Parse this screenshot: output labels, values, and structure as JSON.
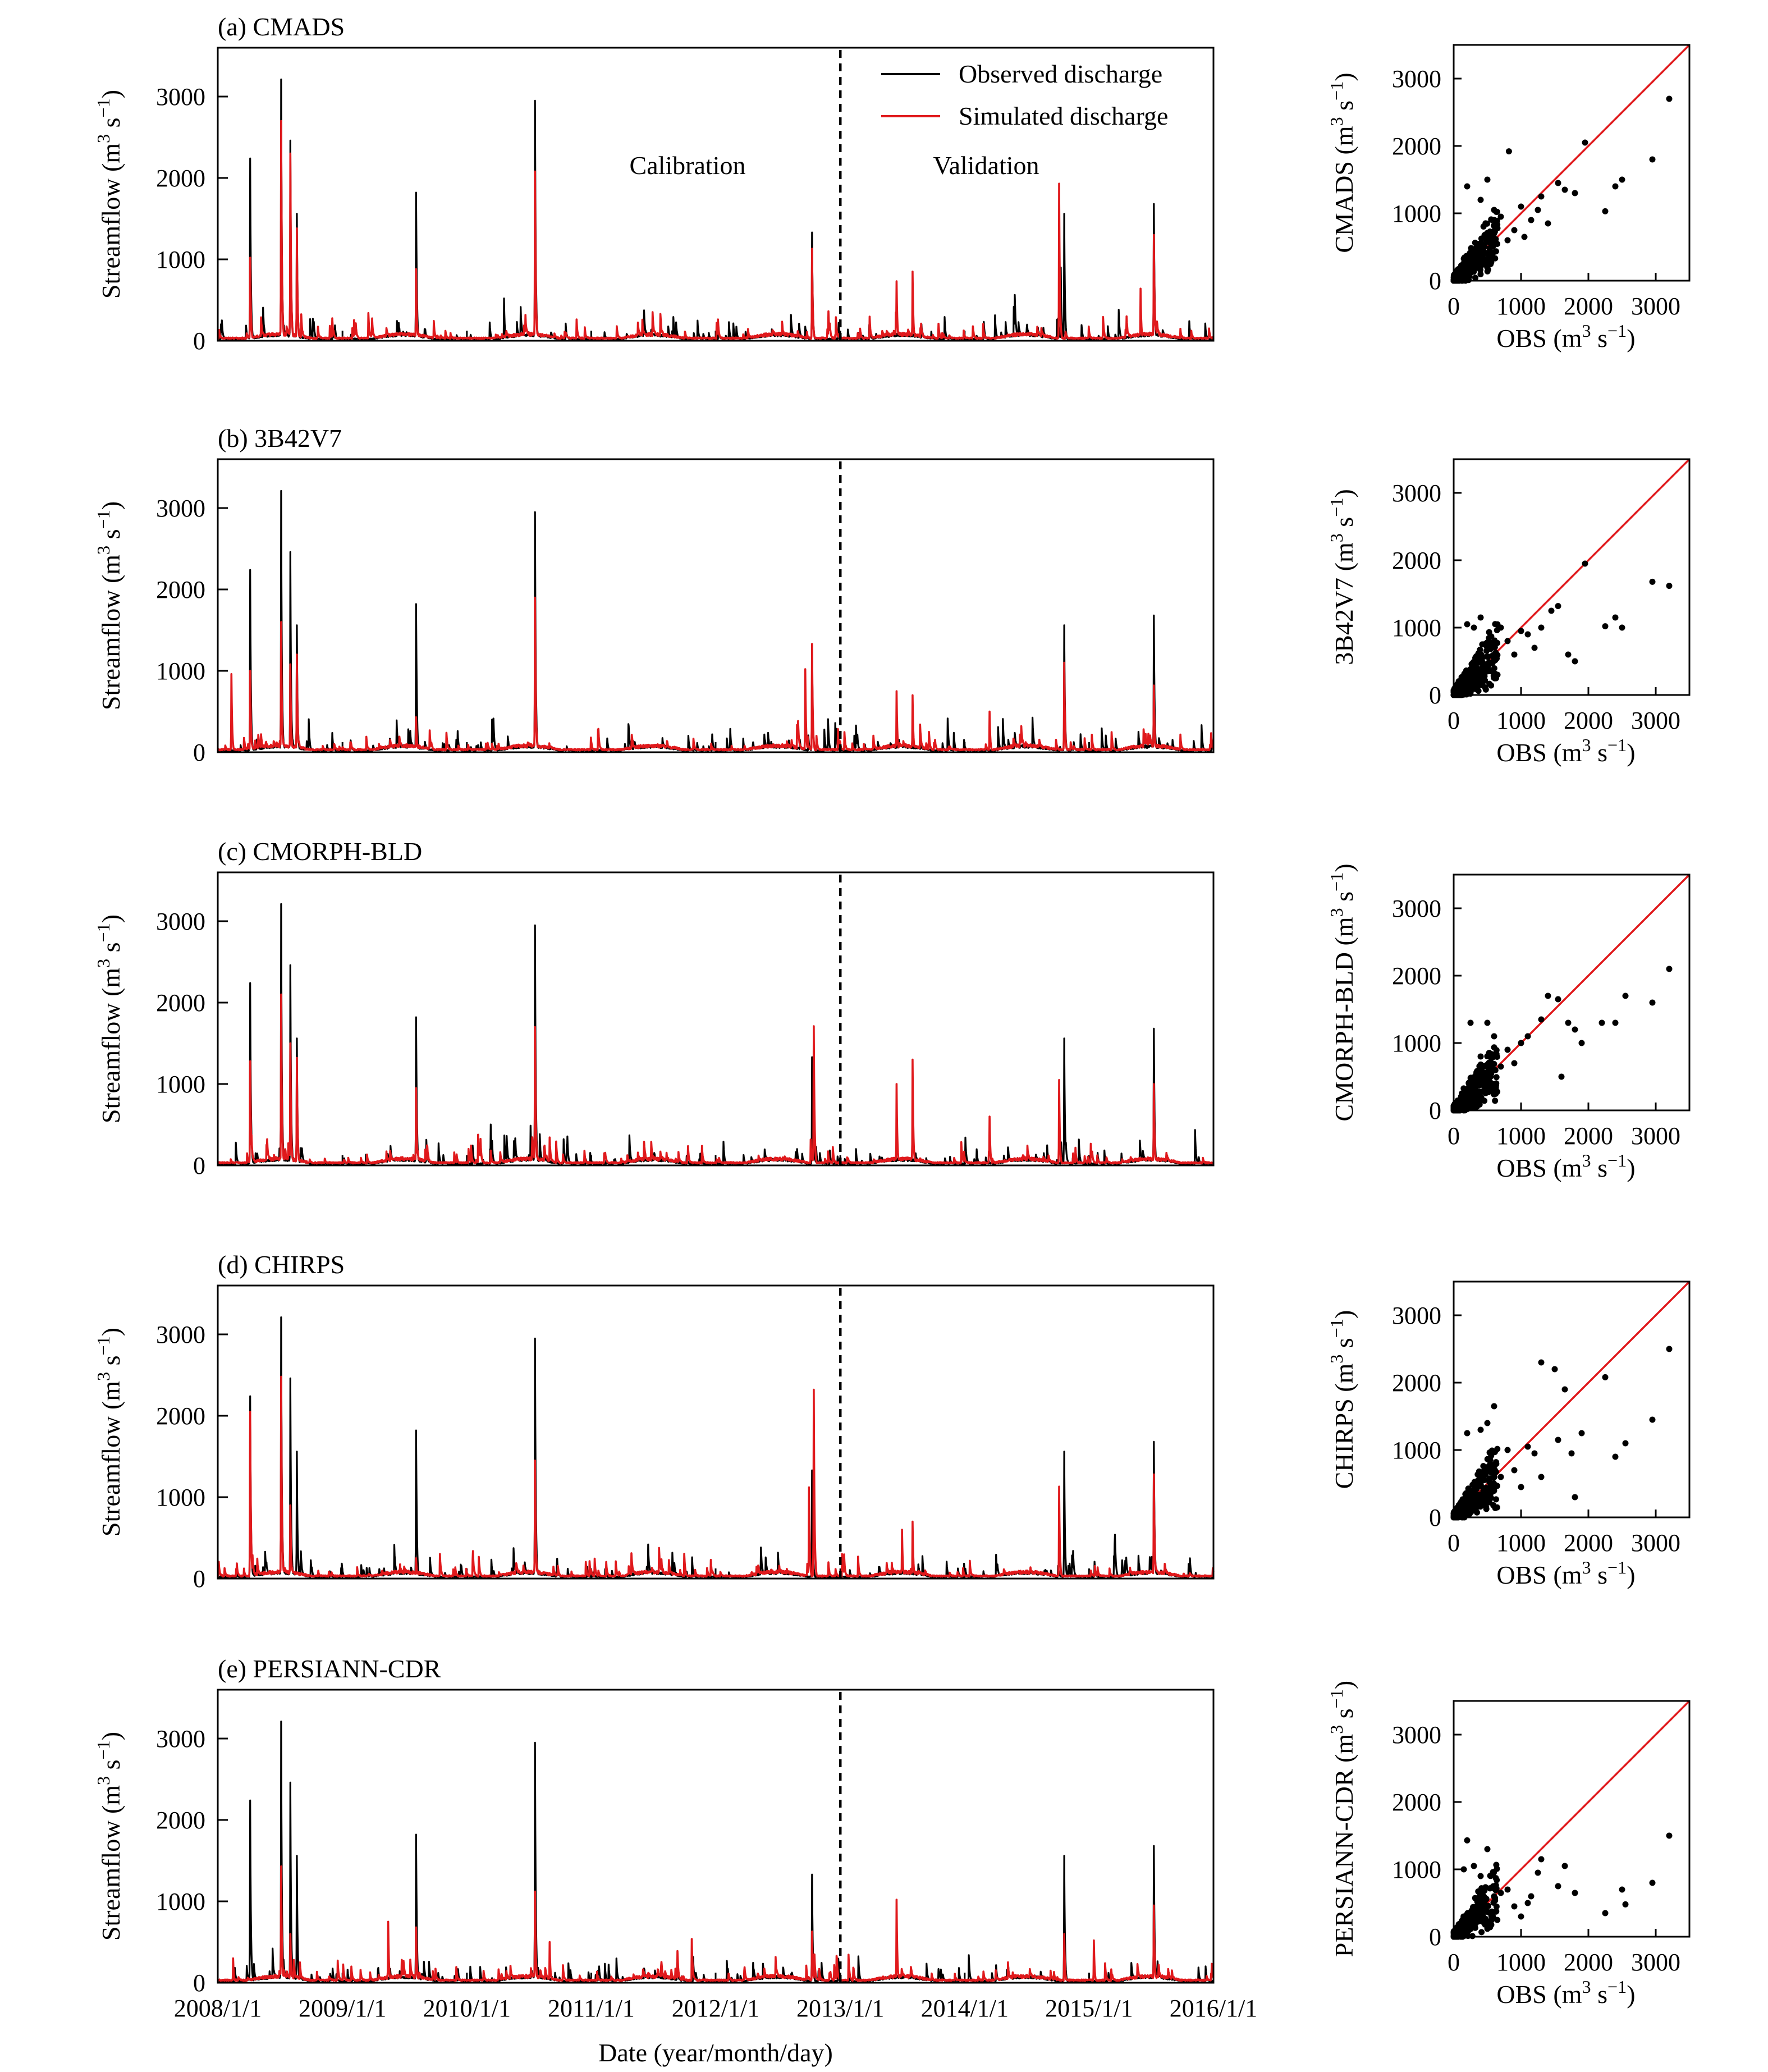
{
  "figure": {
    "xlabel": "Date (year/month/day)",
    "x_tick_labels": [
      "2008/1/1",
      "2009/1/1",
      "2010/1/1",
      "2011/1/1",
      "2012/1/1",
      "2013/1/1",
      "2014/1/1",
      "2015/1/1",
      "2016/1/1"
    ],
    "legend": {
      "observed": "Observed discharge",
      "simulated": "Simulated discharge",
      "position": "top-right of panel (a)"
    },
    "period_labels": {
      "calibration": "Calibration",
      "validation": "Validation"
    },
    "colors": {
      "observed": "#000000",
      "simulated": "#e0191c",
      "one_to_one": "#e0191c",
      "points": "#000000"
    }
  },
  "chart_data": [
    {
      "type": "line",
      "panel": "a",
      "title": "(a) CMADS",
      "ylabel": "Streamflow (m³ s⁻¹)",
      "ylim": [
        0,
        3600
      ],
      "yticks": [
        0,
        1000,
        2000,
        3000
      ],
      "xlim": [
        "2008-01-01",
        "2016-01-01"
      ],
      "calibration_validation_split": "2013-01-01",
      "series": [
        {
          "name": "Observed discharge",
          "peaks": [
            [
              "2008-04-05",
              2240
            ],
            [
              "2008-07-05",
              3210
            ],
            [
              "2008-08-01",
              2460
            ],
            [
              "2008-08-20",
              1560
            ],
            [
              "2009-08-05",
              1820
            ],
            [
              "2010-07-20",
              2950
            ],
            [
              "2010-04-20",
              520
            ],
            [
              "2012-10-10",
              1330
            ],
            [
              "2014-10-20",
              1560
            ],
            [
              "2014-10-10",
              900
            ],
            [
              "2015-07-10",
              1680
            ]
          ]
        },
        {
          "name": "Simulated discharge",
          "peaks": [
            [
              "2008-04-05",
              1020
            ],
            [
              "2008-07-05",
              2700
            ],
            [
              "2008-08-01",
              2300
            ],
            [
              "2008-08-20",
              1380
            ],
            [
              "2009-08-05",
              880
            ],
            [
              "2010-07-20",
              2080
            ],
            [
              "2012-10-10",
              1130
            ],
            [
              "2013-06-15",
              730
            ],
            [
              "2013-08-01",
              850
            ],
            [
              "2014-10-05",
              1930
            ],
            [
              "2015-07-10",
              1300
            ],
            [
              "2015-06-01",
              640
            ]
          ]
        }
      ]
    },
    {
      "type": "line",
      "panel": "b",
      "title": "(b) 3B42V7",
      "ylabel": "Streamflow (m³ s⁻¹)",
      "ylim": [
        0,
        3600
      ],
      "yticks": [
        0,
        1000,
        2000,
        3000
      ],
      "xlim": [
        "2008-01-01",
        "2016-01-01"
      ],
      "calibration_validation_split": "2013-01-01",
      "series": [
        {
          "name": "Observed discharge",
          "peaks": [
            [
              "2008-04-05",
              2240
            ],
            [
              "2008-07-05",
              3210
            ],
            [
              "2008-08-01",
              2460
            ],
            [
              "2008-08-20",
              1560
            ],
            [
              "2009-08-05",
              1820
            ],
            [
              "2010-07-20",
              2950
            ],
            [
              "2012-10-10",
              1330
            ],
            [
              "2014-10-20",
              1560
            ],
            [
              "2015-07-10",
              1680
            ]
          ]
        },
        {
          "name": "Simulated discharge",
          "peaks": [
            [
              "2008-02-10",
              960
            ],
            [
              "2008-04-05",
              1000
            ],
            [
              "2008-07-05",
              1600
            ],
            [
              "2008-08-01",
              1080
            ],
            [
              "2008-08-20",
              1200
            ],
            [
              "2009-08-05",
              430
            ],
            [
              "2010-07-20",
              1900
            ],
            [
              "2012-09-20",
              1020
            ],
            [
              "2012-10-10",
              1330
            ],
            [
              "2013-06-15",
              750
            ],
            [
              "2013-08-01",
              700
            ],
            [
              "2014-03-15",
              500
            ],
            [
              "2014-10-20",
              1100
            ],
            [
              "2015-07-10",
              820
            ]
          ]
        }
      ]
    },
    {
      "type": "line",
      "panel": "c",
      "title": "(c) CMORPH-BLD",
      "ylabel": "Streamflow (m³ s⁻¹)",
      "ylim": [
        0,
        3600
      ],
      "yticks": [
        0,
        1000,
        2000,
        3000
      ],
      "xlim": [
        "2008-01-01",
        "2016-01-01"
      ],
      "calibration_validation_split": "2013-01-01",
      "series": [
        {
          "name": "Observed discharge",
          "peaks": [
            [
              "2008-04-05",
              2240
            ],
            [
              "2008-07-05",
              3210
            ],
            [
              "2008-08-01",
              2460
            ],
            [
              "2008-08-20",
              1560
            ],
            [
              "2009-08-05",
              1820
            ],
            [
              "2010-07-20",
              2950
            ],
            [
              "2012-10-10",
              1330
            ],
            [
              "2014-10-20",
              1560
            ],
            [
              "2015-07-10",
              1680
            ]
          ]
        },
        {
          "name": "Simulated discharge",
          "peaks": [
            [
              "2008-04-05",
              1280
            ],
            [
              "2008-07-05",
              2100
            ],
            [
              "2008-08-01",
              1500
            ],
            [
              "2008-08-20",
              1320
            ],
            [
              "2009-08-05",
              950
            ],
            [
              "2010-07-20",
              1700
            ],
            [
              "2012-10-15",
              1710
            ],
            [
              "2013-06-15",
              1000
            ],
            [
              "2013-08-01",
              1300
            ],
            [
              "2014-03-15",
              600
            ],
            [
              "2014-10-05",
              1050
            ],
            [
              "2015-07-10",
              1000
            ]
          ]
        }
      ]
    },
    {
      "type": "line",
      "panel": "d",
      "title": "(d) CHIRPS",
      "ylabel": "Streamflow (m³ s⁻¹)",
      "ylim": [
        0,
        3600
      ],
      "yticks": [
        0,
        1000,
        2000,
        3000
      ],
      "xlim": [
        "2008-01-01",
        "2016-01-01"
      ],
      "calibration_validation_split": "2013-01-01",
      "series": [
        {
          "name": "Observed discharge",
          "peaks": [
            [
              "2008-04-05",
              2240
            ],
            [
              "2008-07-05",
              3210
            ],
            [
              "2008-08-01",
              2460
            ],
            [
              "2008-08-20",
              1560
            ],
            [
              "2009-08-05",
              1820
            ],
            [
              "2010-07-20",
              2950
            ],
            [
              "2012-10-10",
              1330
            ],
            [
              "2014-10-20",
              1560
            ],
            [
              "2015-07-10",
              1680
            ]
          ]
        },
        {
          "name": "Simulated discharge",
          "peaks": [
            [
              "2008-04-05",
              2050
            ],
            [
              "2008-07-05",
              2480
            ],
            [
              "2008-08-01",
              900
            ],
            [
              "2009-08-05",
              250
            ],
            [
              "2010-07-20",
              1450
            ],
            [
              "2012-10-01",
              1120
            ],
            [
              "2012-10-15",
              2320
            ],
            [
              "2013-07-01",
              600
            ],
            [
              "2013-08-01",
              700
            ],
            [
              "2014-10-05",
              1130
            ],
            [
              "2015-07-10",
              1280
            ]
          ]
        }
      ]
    },
    {
      "type": "line",
      "panel": "e",
      "title": "(e) PERSIANN-CDR",
      "ylabel": "Streamflow (m³ s⁻¹)",
      "ylim": [
        0,
        3600
      ],
      "yticks": [
        0,
        1000,
        2000,
        3000
      ],
      "xlim": [
        "2008-01-01",
        "2016-01-01"
      ],
      "calibration_validation_split": "2013-01-01",
      "series": [
        {
          "name": "Observed discharge",
          "peaks": [
            [
              "2008-04-05",
              2240
            ],
            [
              "2008-07-05",
              3210
            ],
            [
              "2008-08-01",
              2460
            ],
            [
              "2008-08-20",
              1560
            ],
            [
              "2009-08-05",
              1820
            ],
            [
              "2010-07-20",
              2950
            ],
            [
              "2012-10-10",
              1330
            ],
            [
              "2014-10-20",
              1560
            ],
            [
              "2015-07-10",
              1680
            ]
          ]
        },
        {
          "name": "Simulated discharge",
          "peaks": [
            [
              "2008-02-15",
              300
            ],
            [
              "2008-07-05",
              1430
            ],
            [
              "2008-08-01",
              600
            ],
            [
              "2009-05-15",
              750
            ],
            [
              "2009-08-05",
              680
            ],
            [
              "2010-07-20",
              1120
            ],
            [
              "2010-09-01",
              500
            ],
            [
              "2012-10-10",
              630
            ],
            [
              "2013-06-15",
              1020
            ],
            [
              "2014-10-20",
              600
            ],
            [
              "2015-01-15",
              520
            ],
            [
              "2015-07-10",
              950
            ]
          ]
        }
      ]
    },
    {
      "type": "scatter",
      "panel": "a",
      "xlabel": "OBS (m³ s⁻¹)",
      "ylabel": "CMADS (m³ s⁻¹)",
      "xlim": [
        0,
        3500
      ],
      "ylim": [
        0,
        3500
      ],
      "xticks": [
        0,
        1000,
        2000,
        3000
      ],
      "yticks": [
        0,
        1000,
        2000,
        3000
      ],
      "one_to_one_line": true,
      "points": [
        [
          3200,
          2700
        ],
        [
          2950,
          1800
        ],
        [
          1950,
          2050
        ],
        [
          2250,
          1030
        ],
        [
          2500,
          1500
        ],
        [
          2400,
          1400
        ],
        [
          1800,
          1300
        ],
        [
          1550,
          1450
        ],
        [
          1300,
          1250
        ],
        [
          1650,
          1350
        ],
        [
          820,
          1920
        ],
        [
          200,
          1400
        ],
        [
          500,
          1500
        ],
        [
          400,
          1200
        ],
        [
          1000,
          1100
        ],
        [
          1150,
          900
        ],
        [
          1400,
          850
        ],
        [
          1250,
          1050
        ],
        [
          900,
          750
        ],
        [
          700,
          950
        ],
        [
          600,
          700
        ],
        [
          600,
          1050
        ],
        [
          300,
          300
        ],
        [
          450,
          500
        ],
        [
          800,
          600
        ],
        [
          1050,
          650
        ]
      ]
    },
    {
      "type": "scatter",
      "panel": "b",
      "xlabel": "OBS (m³ s⁻¹)",
      "ylabel": "3B42V7 (m³ s⁻¹)",
      "xlim": [
        0,
        3500
      ],
      "ylim": [
        0,
        3500
      ],
      "xticks": [
        0,
        1000,
        2000,
        3000
      ],
      "yticks": [
        0,
        1000,
        2000,
        3000
      ],
      "one_to_one_line": true,
      "points": [
        [
          2950,
          1680
        ],
        [
          3200,
          1620
        ],
        [
          1950,
          1950
        ],
        [
          2250,
          1020
        ],
        [
          2500,
          1000
        ],
        [
          2400,
          1150
        ],
        [
          1800,
          500
        ],
        [
          1700,
          600
        ],
        [
          1550,
          1320
        ],
        [
          1300,
          1000
        ],
        [
          1450,
          1250
        ],
        [
          1100,
          900
        ],
        [
          1000,
          950
        ],
        [
          800,
          800
        ],
        [
          700,
          1000
        ],
        [
          600,
          550
        ],
        [
          400,
          1150
        ],
        [
          200,
          1050
        ],
        [
          300,
          1000
        ],
        [
          500,
          700
        ],
        [
          900,
          600
        ],
        [
          1200,
          700
        ],
        [
          650,
          300
        ]
      ]
    },
    {
      "type": "scatter",
      "panel": "c",
      "xlabel": "OBS (m³ s⁻¹)",
      "ylabel": "CMORPH-BLD (m³ s⁻¹)",
      "xlim": [
        0,
        3500
      ],
      "ylim": [
        0,
        3500
      ],
      "xticks": [
        0,
        1000,
        2000,
        3000
      ],
      "yticks": [
        0,
        1000,
        2000,
        3000
      ],
      "one_to_one_line": true,
      "points": [
        [
          3200,
          2100
        ],
        [
          2950,
          1600
        ],
        [
          2550,
          1700
        ],
        [
          2200,
          1300
        ],
        [
          2400,
          1300
        ],
        [
          1800,
          1200
        ],
        [
          1900,
          1000
        ],
        [
          1600,
          500
        ],
        [
          1400,
          1700
        ],
        [
          1550,
          1650
        ],
        [
          1300,
          1350
        ],
        [
          1700,
          1300
        ],
        [
          1100,
          1100
        ],
        [
          1000,
          1000
        ],
        [
          500,
          1300
        ],
        [
          250,
          1300
        ],
        [
          600,
          1100
        ],
        [
          800,
          900
        ],
        [
          700,
          650
        ],
        [
          400,
          800
        ],
        [
          900,
          700
        ]
      ]
    },
    {
      "type": "scatter",
      "panel": "d",
      "xlabel": "OBS (m³ s⁻¹)",
      "ylabel": "CHIRPS (m³ s⁻¹)",
      "xlim": [
        0,
        3500
      ],
      "ylim": [
        0,
        3500
      ],
      "xticks": [
        0,
        1000,
        2000,
        3000
      ],
      "yticks": [
        0,
        1000,
        2000,
        3000
      ],
      "one_to_one_line": true,
      "points": [
        [
          3200,
          2500
        ],
        [
          2950,
          1450
        ],
        [
          2250,
          2080
        ],
        [
          2550,
          1100
        ],
        [
          2400,
          900
        ],
        [
          1900,
          1250
        ],
        [
          1800,
          300
        ],
        [
          1750,
          950
        ],
        [
          1650,
          1900
        ],
        [
          1500,
          2200
        ],
        [
          1300,
          2300
        ],
        [
          1550,
          1150
        ],
        [
          1300,
          600
        ],
        [
          1100,
          1050
        ],
        [
          1200,
          950
        ],
        [
          600,
          1650
        ],
        [
          200,
          1250
        ],
        [
          400,
          1300
        ],
        [
          500,
          1400
        ],
        [
          800,
          1000
        ],
        [
          900,
          700
        ],
        [
          700,
          600
        ],
        [
          1000,
          450
        ]
      ]
    },
    {
      "type": "scatter",
      "panel": "e",
      "xlabel": "OBS (m³ s⁻¹)",
      "ylabel": "PERSIANN-CDR (m³ s⁻¹)",
      "xlim": [
        0,
        3500
      ],
      "ylim": [
        0,
        3500
      ],
      "xticks": [
        0,
        1000,
        2000,
        3000
      ],
      "yticks": [
        0,
        1000,
        2000,
        3000
      ],
      "one_to_one_line": true,
      "points": [
        [
          3200,
          1500
        ],
        [
          2950,
          800
        ],
        [
          2500,
          700
        ],
        [
          2550,
          480
        ],
        [
          2250,
          350
        ],
        [
          1800,
          650
        ],
        [
          1650,
          1050
        ],
        [
          1550,
          750
        ],
        [
          1300,
          1150
        ],
        [
          1250,
          950
        ],
        [
          1150,
          600
        ],
        [
          1100,
          500
        ],
        [
          800,
          700
        ],
        [
          700,
          650
        ],
        [
          500,
          1300
        ],
        [
          200,
          1430
        ],
        [
          300,
          1050
        ],
        [
          150,
          1000
        ],
        [
          400,
          900
        ],
        [
          600,
          600
        ],
        [
          900,
          450
        ],
        [
          1000,
          300
        ]
      ]
    }
  ]
}
